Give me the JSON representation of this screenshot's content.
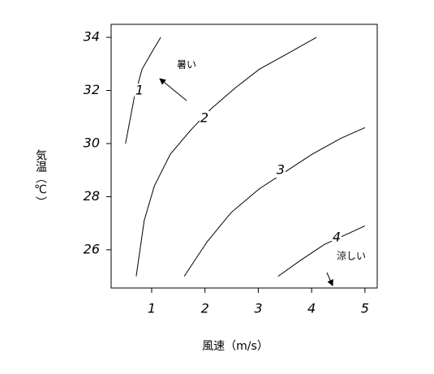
{
  "chart_data": {
    "type": "line",
    "x_label": "風速（m/s）",
    "y_label": "気温（℃）",
    "xlim": [
      0.24,
      5.23
    ],
    "xticks": [
      1,
      2,
      3,
      4,
      5
    ],
    "ylim": [
      24.56,
      34.49
    ],
    "yticks": [
      26,
      28,
      30,
      32,
      34
    ],
    "grid": false,
    "series": [
      {
        "name": "1",
        "color": "#000000",
        "x": [
          0.51,
          0.67,
          0.82,
          1.02,
          1.17
        ],
        "values": [
          30.0,
          31.7,
          32.8,
          33.5,
          34.0
        ]
      },
      {
        "name": "2",
        "color": "#000000",
        "x": [
          0.71,
          0.86,
          1.05,
          1.35,
          1.73,
          2.11,
          2.57,
          3.02,
          3.56,
          4.09
        ],
        "values": [
          25.0,
          27.1,
          28.4,
          29.6,
          30.5,
          31.3,
          32.1,
          32.8,
          33.4,
          34.0
        ]
      },
      {
        "name": "3",
        "color": "#000000",
        "x": [
          1.61,
          2.04,
          2.49,
          3.02,
          3.48,
          4.01,
          4.55,
          5.0
        ],
        "values": [
          25.0,
          26.3,
          27.4,
          28.3,
          28.9,
          29.6,
          30.2,
          30.6
        ]
      },
      {
        "name": "4",
        "color": "#000000",
        "x": [
          3.37,
          3.79,
          4.24,
          5.0
        ],
        "values": [
          25.0,
          25.6,
          26.2,
          26.9
        ]
      }
    ],
    "annotations": [
      "暑い",
      "涼しい"
    ]
  }
}
